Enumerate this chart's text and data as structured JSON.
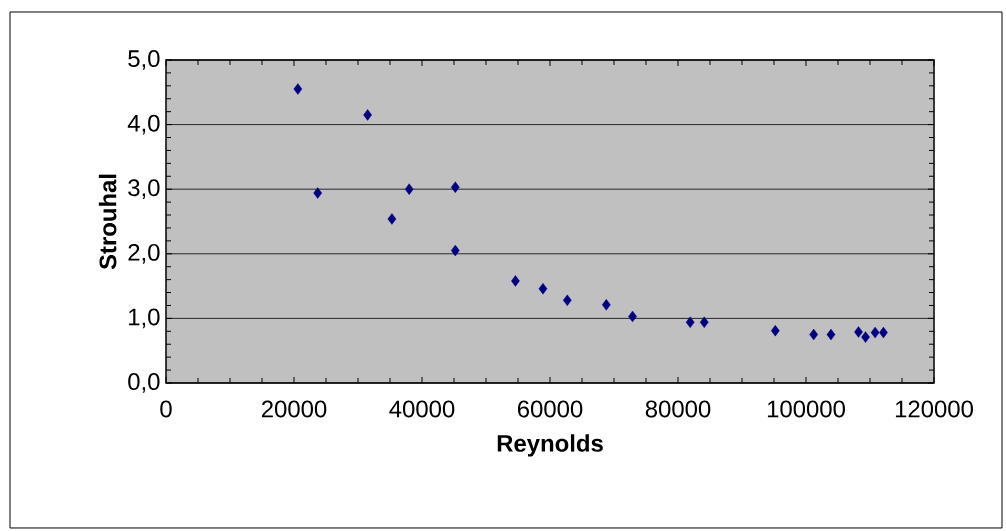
{
  "chart_data": {
    "type": "scatter",
    "xlabel": "Reynolds",
    "ylabel": "Strouhal",
    "series": [
      {
        "color": "#000080",
        "x": [
          20600,
          23700,
          31500,
          35300,
          38000,
          45200,
          45200,
          54600,
          58900,
          62700,
          68800,
          72900,
          81900,
          84100,
          95200,
          101200,
          103900,
          108200,
          109300,
          110800,
          112100
        ],
        "values": [
          4.55,
          2.94,
          4.15,
          2.54,
          3.0,
          3.03,
          2.05,
          1.58,
          1.46,
          1.28,
          1.21,
          1.03,
          0.94,
          0.94,
          0.81,
          0.75,
          0.75,
          0.79,
          0.71,
          0.78,
          0.78
        ]
      }
    ],
    "xlim": [
      0,
      120000
    ],
    "xticks": [
      0,
      20000,
      40000,
      60000,
      80000,
      100000,
      120000
    ],
    "ylim": [
      0,
      5
    ],
    "yticks": [
      {
        "value": 0,
        "label": "0,0"
      },
      {
        "value": 1,
        "label": "1,0"
      },
      {
        "value": 2,
        "label": "2,0"
      },
      {
        "value": 3,
        "label": "3,0"
      },
      {
        "value": 4,
        "label": "4,0"
      },
      {
        "value": 5,
        "label": "5,0"
      }
    ],
    "grid": "y",
    "marker": "diamond"
  }
}
